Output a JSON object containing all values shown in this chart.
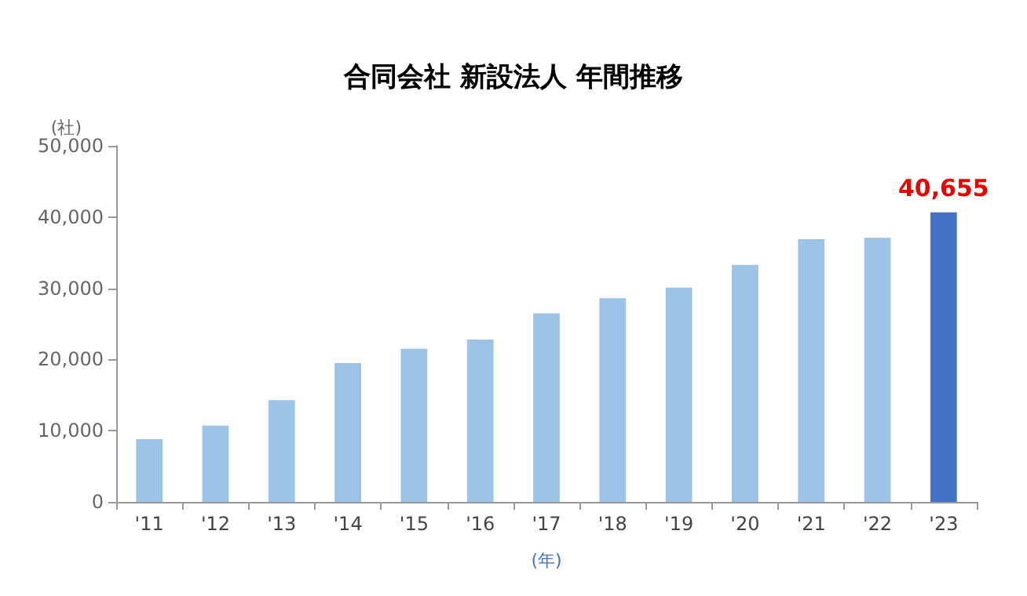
{
  "chart_data": {
    "type": "bar",
    "title": "合同会社 新設法人 年間推移",
    "ylabel": "(社)",
    "xlabel": "(年)",
    "categories": [
      "'11",
      "'12",
      "'13",
      "'14",
      "'15",
      "'16",
      "'17",
      "'18",
      "'19",
      "'20",
      "'21",
      "'22",
      "'23"
    ],
    "values": [
      8800,
      10700,
      14300,
      19500,
      21500,
      22800,
      26500,
      28600,
      30100,
      33300,
      36900,
      37100,
      40655
    ],
    "colors": [
      "#9dc3e6",
      "#9dc3e6",
      "#9dc3e6",
      "#9dc3e6",
      "#9dc3e6",
      "#9dc3e6",
      "#9dc3e6",
      "#9dc3e6",
      "#9dc3e6",
      "#9dc3e6",
      "#9dc3e6",
      "#9dc3e6",
      "#4472c4"
    ],
    "value_labels": [
      null,
      null,
      null,
      null,
      null,
      null,
      null,
      null,
      null,
      null,
      null,
      null,
      "40,655"
    ],
    "ylim": [
      0,
      50000
    ],
    "yticks": [
      0,
      {
        "value": 10000,
        "label": "10,000"
      },
      {
        "value": 20000,
        "label": "20,000"
      },
      {
        "value": 30000,
        "label": "30,000"
      },
      {
        "value": 40000,
        "label": "40,000"
      },
      {
        "value": 50000,
        "label": "50,000"
      }
    ],
    "grid": false
  }
}
